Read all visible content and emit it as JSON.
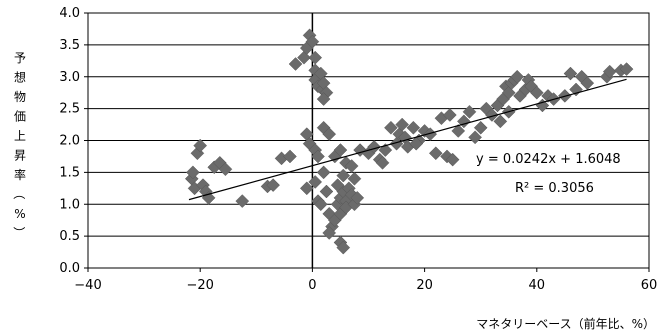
{
  "chart_data": {
    "type": "scatter",
    "xlabel": "マネタリーベース（前年比、%）",
    "ylabel": "予想物価上昇率（%）",
    "xlim": [
      -40,
      60
    ],
    "ylim": [
      0,
      4
    ],
    "xticks": [
      -40,
      -20,
      0,
      20,
      40,
      60
    ],
    "yticks": [
      0.0,
      0.5,
      1.0,
      1.5,
      2.0,
      2.5,
      3.0,
      3.5,
      4.0
    ],
    "x_tick_labels": [
      "−40",
      "−20",
      "0",
      "20",
      "40",
      "60"
    ],
    "y_tick_labels": [
      "0.0",
      "0.5",
      "1.0",
      "1.5",
      "2.0",
      "2.5",
      "3.0",
      "3.5",
      "4.0"
    ],
    "grid": "horizontal",
    "marker": "diamond",
    "marker_color": "#6b6b6b",
    "trendline": {
      "slope": 0.0242,
      "intercept": 1.6048,
      "x_range": [
        -22,
        56
      ]
    },
    "annotations": [
      "y = 0.0242x + 1.6048",
      "R² = 0.3056"
    ],
    "points": [
      [
        -21.5,
        1.4
      ],
      [
        -21.0,
        1.25
      ],
      [
        -21.3,
        1.5
      ],
      [
        -20.5,
        1.8
      ],
      [
        -20.0,
        1.92
      ],
      [
        -19.5,
        1.3
      ],
      [
        -19.0,
        1.2
      ],
      [
        -18.5,
        1.1
      ],
      [
        -17.5,
        1.58
      ],
      [
        -16.5,
        1.65
      ],
      [
        -15.5,
        1.55
      ],
      [
        -12.5,
        1.05
      ],
      [
        -8.0,
        1.28
      ],
      [
        -7.0,
        1.3
      ],
      [
        -5.5,
        1.72
      ],
      [
        -4.0,
        1.75
      ],
      [
        -3.0,
        3.2
      ],
      [
        -1.5,
        3.3
      ],
      [
        -1.0,
        3.45
      ],
      [
        -0.5,
        3.65
      ],
      [
        0.0,
        3.55
      ],
      [
        0.5,
        3.3
      ],
      [
        0.5,
        3.1
      ],
      [
        0.5,
        2.95
      ],
      [
        1.0,
        2.85
      ],
      [
        1.5,
        3.05
      ],
      [
        1.8,
        2.8
      ],
      [
        2.0,
        2.9
      ],
      [
        2.5,
        2.75
      ],
      [
        2.0,
        2.65
      ],
      [
        -1.0,
        2.1
      ],
      [
        -0.5,
        1.95
      ],
      [
        0.5,
        1.85
      ],
      [
        1.0,
        1.75
      ],
      [
        2.0,
        2.2
      ],
      [
        3.0,
        2.1
      ],
      [
        -1.0,
        1.25
      ],
      [
        0.5,
        1.35
      ],
      [
        1.0,
        1.05
      ],
      [
        1.5,
        1.0
      ],
      [
        2.0,
        1.5
      ],
      [
        2.5,
        1.2
      ],
      [
        3.0,
        0.85
      ],
      [
        3.5,
        0.65
      ],
      [
        3.0,
        0.55
      ],
      [
        4.0,
        0.75
      ],
      [
        4.5,
        1.0
      ],
      [
        5.0,
        1.1
      ],
      [
        5.0,
        0.85
      ],
      [
        5.5,
        1.2
      ],
      [
        6.0,
        1.05
      ],
      [
        4.5,
        1.3
      ],
      [
        5.5,
        1.45
      ],
      [
        6.5,
        1.25
      ],
      [
        6.0,
        0.95
      ],
      [
        7.0,
        1.15
      ],
      [
        7.5,
        1.0
      ],
      [
        8.0,
        1.1
      ],
      [
        5.0,
        0.4
      ],
      [
        5.5,
        0.32
      ],
      [
        4.0,
        1.75
      ],
      [
        5.0,
        1.85
      ],
      [
        6.0,
        1.65
      ],
      [
        7.0,
        1.6
      ],
      [
        7.5,
        1.4
      ],
      [
        8.5,
        1.85
      ],
      [
        10.0,
        1.8
      ],
      [
        11.0,
        1.9
      ],
      [
        12.0,
        1.7
      ],
      [
        13.0,
        1.85
      ],
      [
        14.0,
        2.2
      ],
      [
        15.0,
        1.95
      ],
      [
        15.5,
        2.1
      ],
      [
        16.0,
        2.25
      ],
      [
        16.5,
        2.05
      ],
      [
        17.0,
        1.9
      ],
      [
        18.0,
        2.2
      ],
      [
        19.0,
        2.0
      ],
      [
        20.0,
        2.15
      ],
      [
        21.0,
        2.1
      ],
      [
        22.0,
        1.8
      ],
      [
        23.0,
        2.35
      ],
      [
        24.0,
        1.75
      ],
      [
        24.5,
        2.4
      ],
      [
        25.0,
        1.7
      ],
      [
        26.0,
        2.15
      ],
      [
        27.0,
        2.3
      ],
      [
        28.0,
        2.45
      ],
      [
        29.0,
        2.05
      ],
      [
        30.0,
        2.2
      ],
      [
        31.0,
        2.5
      ],
      [
        32.0,
        2.4
      ],
      [
        33.0,
        2.55
      ],
      [
        34.0,
        2.65
      ],
      [
        34.5,
        2.85
      ],
      [
        35.0,
        2.75
      ],
      [
        35.5,
        2.9
      ],
      [
        36.0,
        2.95
      ],
      [
        36.5,
        3.0
      ],
      [
        37.0,
        2.7
      ],
      [
        38.0,
        2.8
      ],
      [
        38.5,
        2.95
      ],
      [
        39.0,
        2.85
      ],
      [
        40.0,
        2.75
      ],
      [
        41.0,
        2.55
      ],
      [
        42.0,
        2.7
      ],
      [
        43.0,
        2.65
      ],
      [
        45.0,
        2.7
      ],
      [
        46.0,
        3.05
      ],
      [
        47.0,
        2.8
      ],
      [
        48.0,
        3.0
      ],
      [
        49.0,
        2.9
      ],
      [
        52.5,
        3.0
      ],
      [
        53.0,
        3.08
      ],
      [
        55.0,
        3.1
      ],
      [
        56.0,
        3.12
      ],
      [
        33.5,
        2.3
      ],
      [
        35.0,
        2.45
      ],
      [
        12.5,
        1.65
      ],
      [
        18.5,
        1.95
      ]
    ]
  }
}
